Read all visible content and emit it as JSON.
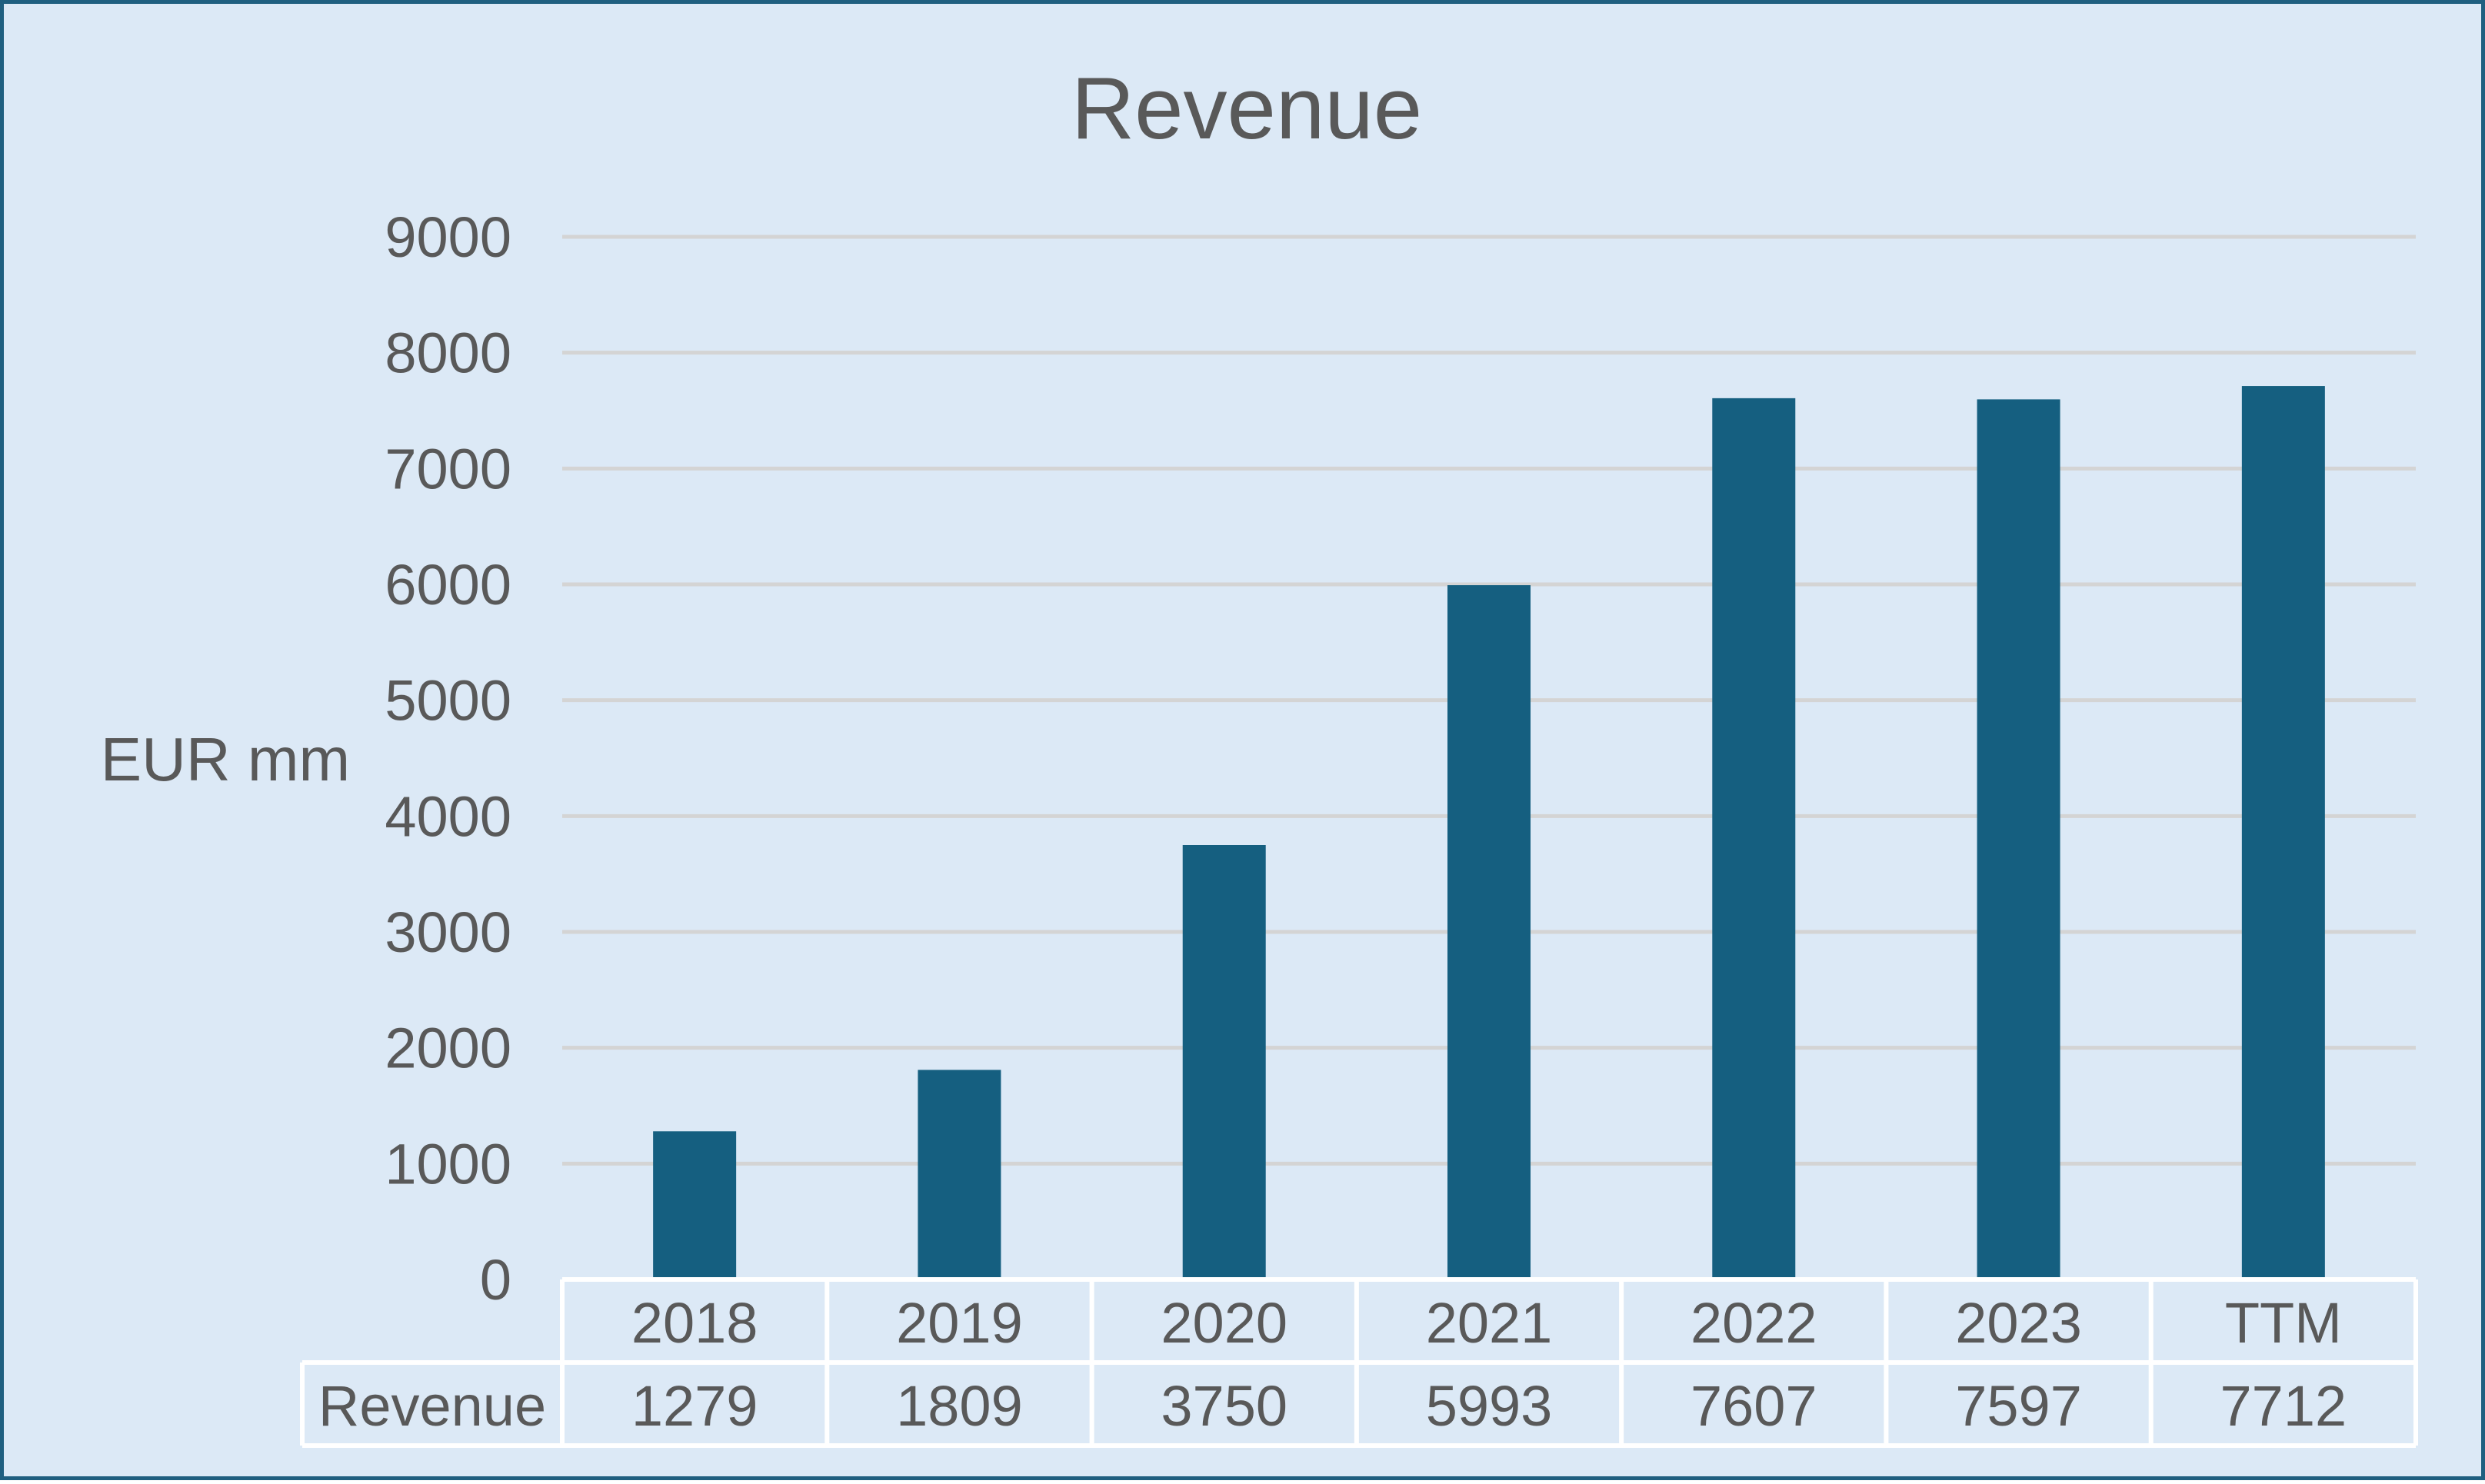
{
  "chart_data": {
    "type": "bar",
    "title": "Revenue",
    "ylabel": "EUR mm",
    "xlabel": "",
    "categories": [
      "2018",
      "2019",
      "2020",
      "2021",
      "2022",
      "2023",
      "TTM"
    ],
    "series": [
      {
        "name": "Revenue",
        "values": [
          1279,
          1809,
          3750,
          5993,
          7607,
          7597,
          7712
        ]
      }
    ],
    "ylim": [
      0,
      9000
    ],
    "yticks": [
      "0",
      "1000",
      "2000",
      "3000",
      "4000",
      "5000",
      "6000",
      "7000",
      "8000",
      "9000"
    ],
    "grid": true,
    "data_table": true,
    "colors": {
      "bar": "#155f80",
      "background": "#dce9f6",
      "border": "#1f5f80",
      "gridline": "#d4d4d4",
      "table_line": "#ffffff",
      "text": "#595959"
    }
  }
}
